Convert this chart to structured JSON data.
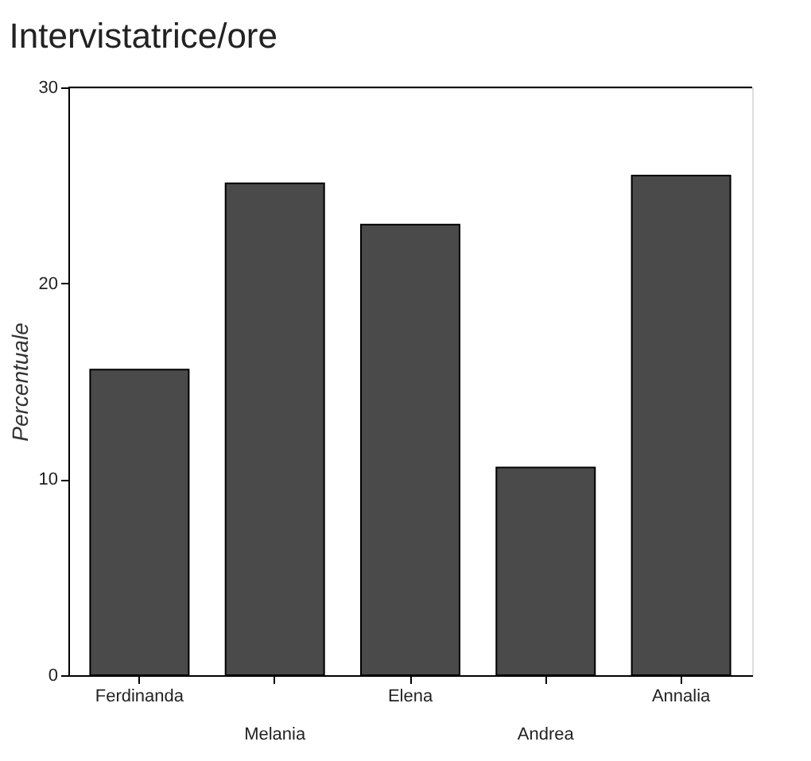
{
  "chart_data": {
    "type": "bar",
    "title": "Intervistatrice/ore",
    "ylabel": "Percentuale",
    "categories": [
      "Ferdinanda",
      "Melania",
      "Elena",
      "Andrea",
      "Annalia"
    ],
    "values": [
      15.6,
      25.1,
      23.0,
      10.6,
      25.5
    ],
    "color": "#4a4a4a",
    "ylim": [
      0,
      30
    ],
    "yticks": [
      0,
      10,
      20,
      30
    ],
    "grid": false
  }
}
